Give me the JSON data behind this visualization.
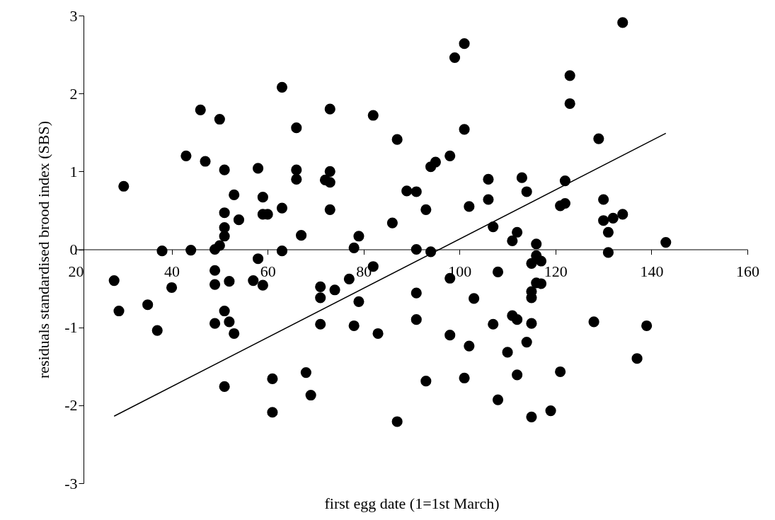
{
  "chart_data": {
    "type": "scatter",
    "xlabel": "first egg date (1=1st March)",
    "ylabel": "residuals standardised brood index (SBS)",
    "xlim": [
      20,
      160
    ],
    "xticks": [
      20,
      40,
      60,
      80,
      100,
      120,
      140,
      160
    ],
    "ylim": [
      -3,
      3
    ],
    "yticks": [
      -3,
      -2,
      -1,
      0,
      1,
      2,
      3
    ],
    "grid": false,
    "series": [
      {
        "color": "#000000",
        "marker": "circle",
        "x": [
          63,
          46,
          50,
          66,
          43,
          47,
          51,
          58,
          66,
          66,
          30,
          53,
          59,
          51,
          54,
          59,
          60,
          63,
          51,
          51,
          67,
          49,
          50,
          38,
          44,
          63,
          58,
          28,
          40,
          49,
          49,
          52,
          57,
          59,
          29,
          35,
          37,
          51,
          49,
          52,
          53,
          51,
          61,
          61,
          68,
          69,
          101,
          99,
          73,
          82,
          87,
          101,
          98,
          94,
          95,
          73,
          72,
          73,
          73,
          89,
          91,
          93,
          102,
          106,
          106,
          113,
          114,
          86,
          107,
          112,
          111,
          79,
          78,
          91,
          94,
          82,
          108,
          98,
          77,
          71,
          74,
          71,
          79,
          91,
          103,
          71,
          78,
          83,
          91,
          98,
          102,
          107,
          111,
          112,
          110,
          114,
          115,
          115,
          115,
          115,
          116,
          117,
          116,
          116,
          117,
          93,
          101,
          112,
          108,
          87,
          115,
          128,
          139,
          137,
          121,
          119,
          143,
          131,
          134,
          123,
          123,
          129,
          122,
          121,
          122,
          130,
          130,
          132,
          134,
          131
        ],
        "values": [
          2.08,
          1.79,
          1.67,
          1.56,
          1.2,
          1.13,
          1.02,
          1.04,
          1.02,
          0.9,
          0.81,
          0.7,
          0.67,
          0.47,
          0.38,
          0.45,
          0.45,
          0.53,
          0.28,
          0.17,
          0.18,
          0.0,
          0.05,
          -0.02,
          -0.01,
          -0.02,
          -0.12,
          -0.4,
          -0.49,
          -0.27,
          -0.45,
          -0.41,
          -0.4,
          -0.46,
          -0.79,
          -0.71,
          -1.04,
          -0.79,
          -0.95,
          -0.93,
          -1.08,
          -1.76,
          -1.66,
          -2.09,
          -1.58,
          -1.87,
          2.64,
          2.46,
          1.8,
          1.72,
          1.41,
          1.54,
          1.2,
          1.06,
          1.12,
          1.0,
          0.89,
          0.86,
          0.51,
          0.75,
          0.74,
          0.51,
          0.55,
          0.9,
          0.64,
          0.92,
          0.74,
          0.34,
          0.29,
          0.22,
          0.11,
          0.17,
          0.02,
          0.0,
          -0.03,
          -0.22,
          -0.29,
          -0.37,
          -0.38,
          -0.48,
          -0.52,
          -0.62,
          -0.67,
          -0.56,
          -0.63,
          -0.96,
          -0.98,
          -1.08,
          -0.9,
          -1.1,
          -1.24,
          -0.96,
          -0.85,
          -0.9,
          -1.32,
          -1.19,
          -0.95,
          -0.54,
          -0.62,
          -0.18,
          -0.43,
          -0.44,
          0.07,
          -0.08,
          -0.15,
          -1.69,
          -1.65,
          -1.61,
          -1.93,
          -2.21,
          -2.15,
          -0.93,
          -0.98,
          -1.4,
          -1.57,
          -2.07,
          0.09,
          -0.04,
          2.91,
          2.23,
          1.87,
          1.42,
          0.88,
          0.56,
          0.59,
          0.64,
          0.37,
          0.4,
          0.45,
          0.22
        ]
      },
      {
        "type": "line",
        "color": "#000000",
        "line_style": "solid",
        "x": [
          28,
          143
        ],
        "values": [
          -2.14,
          1.49
        ]
      }
    ]
  }
}
